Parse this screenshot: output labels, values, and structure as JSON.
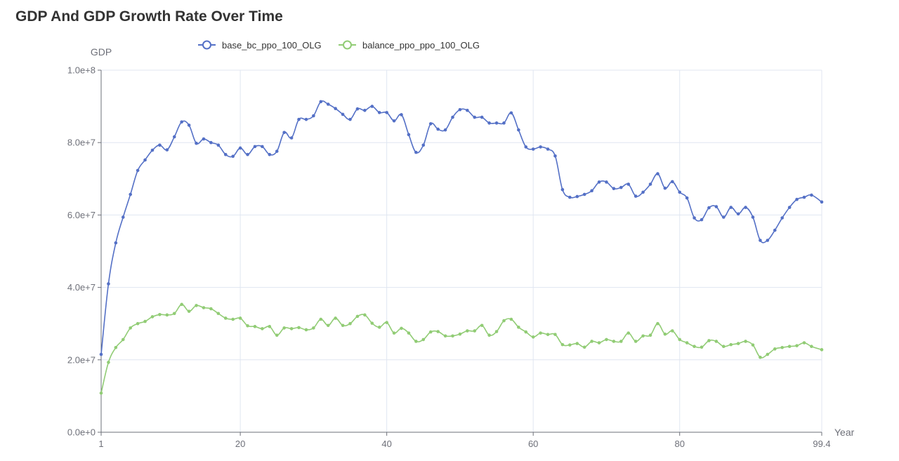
{
  "chart_data": {
    "type": "line",
    "title": "GDP And GDP Growth Rate Over Time",
    "ylabel": "GDP",
    "xlabel": "Year",
    "xlim": [
      1,
      99.4
    ],
    "ylim": [
      0,
      100000000
    ],
    "x_ticks": [
      1,
      20,
      40,
      60,
      80,
      99.4
    ],
    "x_tick_labels": [
      "1",
      "20",
      "40",
      "60",
      "80",
      "99.4"
    ],
    "y_ticks": [
      0,
      20000000,
      40000000,
      60000000,
      80000000,
      100000000
    ],
    "y_tick_labels": [
      "0.0e+0",
      "2.0e+7",
      "4.0e+7",
      "6.0e+7",
      "8.0e+7",
      "1.0e+8"
    ],
    "grid": true,
    "legend_position": "top-center",
    "series": [
      {
        "name": "base_bc_ppo_100_OLG",
        "color": "#5470c6",
        "points": [
          [
            1,
            21500000
          ],
          [
            2,
            41000000
          ],
          [
            3,
            52300000
          ],
          [
            4,
            59400000
          ],
          [
            5,
            65700000
          ],
          [
            6,
            72300000
          ],
          [
            7,
            75200000
          ],
          [
            8,
            77900000
          ],
          [
            9,
            79300000
          ],
          [
            10,
            78000000
          ],
          [
            11,
            81600000
          ],
          [
            12,
            85700000
          ],
          [
            13,
            84800000
          ],
          [
            14,
            79800000
          ],
          [
            15,
            81000000
          ],
          [
            16,
            80000000
          ],
          [
            17,
            79300000
          ],
          [
            18,
            76700000
          ],
          [
            19,
            76200000
          ],
          [
            20,
            78500000
          ],
          [
            21,
            76700000
          ],
          [
            22,
            78900000
          ],
          [
            23,
            78900000
          ],
          [
            24,
            76700000
          ],
          [
            25,
            77600000
          ],
          [
            26,
            82800000
          ],
          [
            27,
            81300000
          ],
          [
            28,
            86400000
          ],
          [
            29,
            86400000
          ],
          [
            30,
            87400000
          ],
          [
            31,
            91300000
          ],
          [
            32,
            90600000
          ],
          [
            33,
            89400000
          ],
          [
            34,
            87800000
          ],
          [
            35,
            86400000
          ],
          [
            36,
            89300000
          ],
          [
            37,
            88900000
          ],
          [
            38,
            90000000
          ],
          [
            39,
            88300000
          ],
          [
            40,
            88300000
          ],
          [
            41,
            86000000
          ],
          [
            42,
            87700000
          ],
          [
            43,
            82200000
          ],
          [
            44,
            77300000
          ],
          [
            45,
            79300000
          ],
          [
            46,
            85200000
          ],
          [
            47,
            83700000
          ],
          [
            48,
            83500000
          ],
          [
            49,
            87000000
          ],
          [
            50,
            89100000
          ],
          [
            51,
            88900000
          ],
          [
            52,
            87000000
          ],
          [
            53,
            87000000
          ],
          [
            54,
            85400000
          ],
          [
            55,
            85400000
          ],
          [
            56,
            85400000
          ],
          [
            57,
            88200000
          ],
          [
            58,
            83500000
          ],
          [
            59,
            78800000
          ],
          [
            60,
            78200000
          ],
          [
            61,
            78800000
          ],
          [
            62,
            78200000
          ],
          [
            63,
            76300000
          ],
          [
            64,
            67000000
          ],
          [
            65,
            64900000
          ],
          [
            66,
            65100000
          ],
          [
            67,
            65700000
          ],
          [
            68,
            66700000
          ],
          [
            69,
            69100000
          ],
          [
            70,
            69100000
          ],
          [
            71,
            67300000
          ],
          [
            72,
            67600000
          ],
          [
            73,
            68500000
          ],
          [
            74,
            65200000
          ],
          [
            75,
            66300000
          ],
          [
            76,
            68500000
          ],
          [
            77,
            71400000
          ],
          [
            78,
            67400000
          ],
          [
            79,
            69200000
          ],
          [
            80,
            66300000
          ],
          [
            81,
            64700000
          ],
          [
            82,
            59200000
          ],
          [
            83,
            58700000
          ],
          [
            84,
            62000000
          ],
          [
            85,
            62300000
          ],
          [
            86,
            59400000
          ],
          [
            87,
            62100000
          ],
          [
            88,
            60300000
          ],
          [
            89,
            62100000
          ],
          [
            90,
            59400000
          ],
          [
            91,
            53000000
          ],
          [
            92,
            53000000
          ],
          [
            93,
            55800000
          ],
          [
            94,
            59200000
          ],
          [
            95,
            62100000
          ],
          [
            96,
            64300000
          ],
          [
            97,
            64900000
          ],
          [
            98,
            65500000
          ],
          [
            99.4,
            63600000
          ]
        ]
      },
      {
        "name": "balance_ppo_ppo_100_OLG",
        "color": "#91cc75",
        "points": [
          [
            1,
            10800000
          ],
          [
            2,
            19300000
          ],
          [
            3,
            23400000
          ],
          [
            4,
            25600000
          ],
          [
            5,
            28800000
          ],
          [
            6,
            30000000
          ],
          [
            7,
            30600000
          ],
          [
            8,
            31900000
          ],
          [
            9,
            32500000
          ],
          [
            10,
            32400000
          ],
          [
            11,
            32800000
          ],
          [
            12,
            35300000
          ],
          [
            13,
            33400000
          ],
          [
            14,
            35000000
          ],
          [
            15,
            34400000
          ],
          [
            16,
            34100000
          ],
          [
            17,
            32800000
          ],
          [
            18,
            31500000
          ],
          [
            19,
            31200000
          ],
          [
            20,
            31500000
          ],
          [
            21,
            29400000
          ],
          [
            22,
            29200000
          ],
          [
            23,
            28600000
          ],
          [
            24,
            29200000
          ],
          [
            25,
            26800000
          ],
          [
            26,
            28800000
          ],
          [
            27,
            28600000
          ],
          [
            28,
            28900000
          ],
          [
            29,
            28300000
          ],
          [
            30,
            28800000
          ],
          [
            31,
            31200000
          ],
          [
            32,
            29500000
          ],
          [
            33,
            31500000
          ],
          [
            34,
            29500000
          ],
          [
            35,
            30000000
          ],
          [
            36,
            32000000
          ],
          [
            37,
            32400000
          ],
          [
            38,
            30100000
          ],
          [
            39,
            29000000
          ],
          [
            40,
            30300000
          ],
          [
            41,
            27400000
          ],
          [
            42,
            28700000
          ],
          [
            43,
            27400000
          ],
          [
            44,
            25100000
          ],
          [
            45,
            25600000
          ],
          [
            46,
            27700000
          ],
          [
            47,
            27800000
          ],
          [
            48,
            26600000
          ],
          [
            49,
            26600000
          ],
          [
            50,
            27100000
          ],
          [
            51,
            28000000
          ],
          [
            52,
            28000000
          ],
          [
            53,
            29500000
          ],
          [
            54,
            26800000
          ],
          [
            55,
            27800000
          ],
          [
            56,
            30800000
          ],
          [
            57,
            31200000
          ],
          [
            58,
            29000000
          ],
          [
            59,
            27700000
          ],
          [
            60,
            26300000
          ],
          [
            61,
            27400000
          ],
          [
            62,
            27000000
          ],
          [
            63,
            27000000
          ],
          [
            64,
            24200000
          ],
          [
            65,
            24100000
          ],
          [
            66,
            24500000
          ],
          [
            67,
            23500000
          ],
          [
            68,
            25100000
          ],
          [
            69,
            24700000
          ],
          [
            70,
            25600000
          ],
          [
            71,
            25100000
          ],
          [
            72,
            25100000
          ],
          [
            73,
            27400000
          ],
          [
            74,
            25100000
          ],
          [
            75,
            26600000
          ],
          [
            76,
            26800000
          ],
          [
            77,
            30000000
          ],
          [
            78,
            27100000
          ],
          [
            79,
            28000000
          ],
          [
            80,
            25600000
          ],
          [
            81,
            24700000
          ],
          [
            82,
            23700000
          ],
          [
            83,
            23500000
          ],
          [
            84,
            25300000
          ],
          [
            85,
            25100000
          ],
          [
            86,
            23700000
          ],
          [
            87,
            24200000
          ],
          [
            88,
            24500000
          ],
          [
            89,
            25100000
          ],
          [
            90,
            24100000
          ],
          [
            91,
            20700000
          ],
          [
            92,
            21500000
          ],
          [
            93,
            23000000
          ],
          [
            94,
            23400000
          ],
          [
            95,
            23700000
          ],
          [
            96,
            23900000
          ],
          [
            97,
            24700000
          ],
          [
            98,
            23700000
          ],
          [
            99.4,
            22800000
          ]
        ]
      }
    ]
  }
}
